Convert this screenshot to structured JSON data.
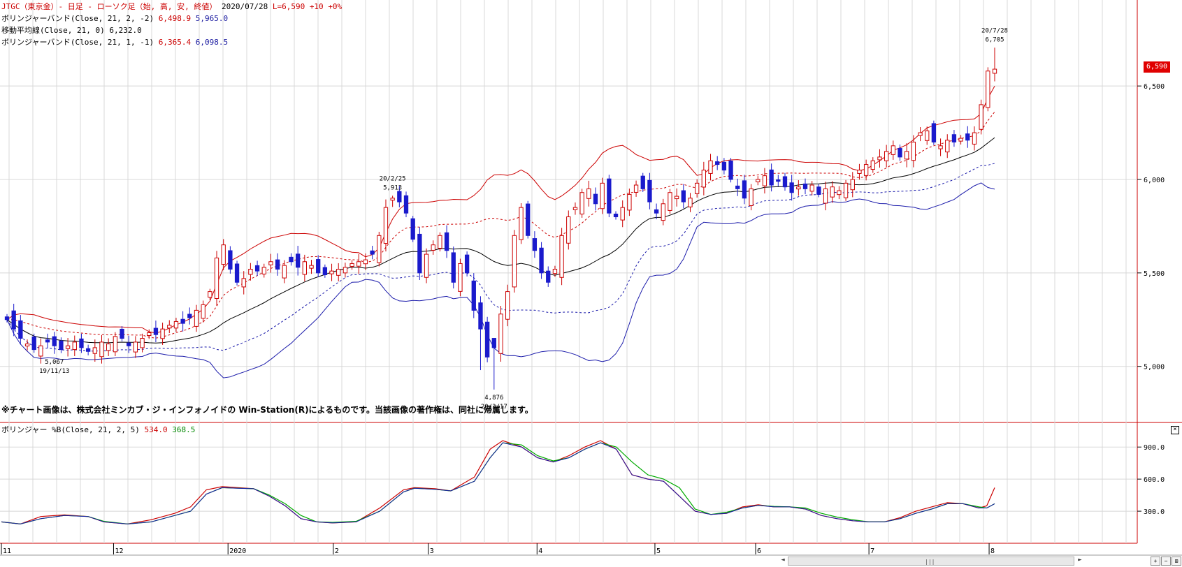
{
  "header": {
    "title": "JTGC（東京金）- 日足 - ローソク足（始, 高, 安, 終値）",
    "date": "2020/07/28",
    "last": "L=6,590",
    "change": "+10",
    "change_pct": "+0%",
    "ind1_label": "ボリンジャーバンド(Close, 21, 2, -2)",
    "ind1_upper": "6,498.9",
    "ind1_lower": "5,965.0",
    "ind2_label": "移動平均線(Close, 21, 0)",
    "ind2_value": "6,232.0",
    "ind3_label": "ボリンジャーバンド(Close, 21, 1, -1)",
    "ind3_upper": "6,365.4",
    "ind3_lower": "6,098.5"
  },
  "notice": "※チャート画像は、株式会社ミンカブ・ジ・インフォノイドの Win-Station(R)によるものです。当該画像の著作権は、同社に帰属します。",
  "price_tag": "6,590",
  "sub_header": {
    "label": "ボリンジャー %B(Close, 21, 2, 5)",
    "v1": "534.0",
    "v2": "368.5"
  },
  "colors": {
    "up": "#cc0000",
    "down": "#1a1acc",
    "sma": "#000000",
    "upper_band": "#cc0000",
    "lower_band": "#1a1aaa",
    "pb_line1": "#cc0000",
    "pb_line2": "#00aa00",
    "pb_line3": "#1a1aaa",
    "grid": "#d8d8d8"
  },
  "chart_data": [
    {
      "type": "candlestick",
      "title": "JTGC（東京金）- 日足 - ローソク足（始, 高, 安, 終値）",
      "y_ticks": [
        5000,
        5500,
        6000,
        6500
      ],
      "y_tick_labels": [
        "5,000",
        "5,500",
        "6,000",
        "6,500"
      ],
      "ylim": [
        4700,
        6960
      ],
      "x_tick_labels": [
        "11",
        "12",
        "2020",
        "2",
        "3",
        "4",
        "5",
        "6",
        "7",
        "8"
      ],
      "annotations": [
        {
          "text": "19/11/13",
          "value": "5,067",
          "date": "2019-11-13"
        },
        {
          "text": "20/2/25",
          "value": "5,913",
          "date": "2020-02-25"
        },
        {
          "text": "20/3/17",
          "value": "4,876",
          "date": "2020-03-17"
        },
        {
          "text": "20/7/28",
          "value": "6,705",
          "date": "2020-07-28"
        }
      ],
      "close_series": [
        5250,
        5200,
        5150,
        5120,
        5090,
        5110,
        5130,
        5110,
        5090,
        5110,
        5130,
        5100,
        5080,
        5100,
        5130,
        5120,
        5160,
        5150,
        5110,
        5130,
        5150,
        5180,
        5170,
        5200,
        5220,
        5240,
        5230,
        5260,
        5300,
        5330,
        5400,
        5580,
        5650,
        5520,
        5450,
        5470,
        5520,
        5510,
        5530,
        5560,
        5520,
        5540,
        5560,
        5530,
        5560,
        5540,
        5500,
        5490,
        5510,
        5520,
        5530,
        5550,
        5560,
        5570,
        5600,
        5700,
        5850,
        5900,
        5880,
        5820,
        5680,
        5500,
        5600,
        5650,
        5700,
        5620,
        5450,
        5550,
        5500,
        5300,
        5200,
        5050,
        5100,
        5280,
        5400,
        5700,
        5850,
        5700,
        5620,
        5500,
        5450,
        5520,
        5700,
        5800,
        5850,
        5930,
        5950,
        5870,
        5980,
        5820,
        5800,
        5850,
        5920,
        5970,
        5950,
        5880,
        5820,
        5870,
        5930,
        5910,
        5880,
        5900,
        5980,
        6050,
        6100,
        6080,
        6050,
        6000,
        5950,
        5900,
        5950,
        6000,
        6020,
        5970,
        5990,
        5960,
        5930,
        5960,
        5950,
        5970,
        5920,
        5950,
        5960,
        5940,
        5980,
        6000,
        6050,
        6080,
        6100,
        6120,
        6150,
        6180,
        6120,
        6150,
        6200,
        6250,
        6260,
        6200,
        6180,
        6210,
        6200,
        6220,
        6210,
        6250,
        6400,
        6580,
        6590
      ]
    },
    {
      "type": "line",
      "title": "ボリンジャー %B(Close, 21, 2, 5)",
      "y_ticks": [
        300,
        600,
        900
      ],
      "y_tick_labels": [
        "300.0",
        "600.0",
        "900.0"
      ],
      "ylim": [
        0,
        1130
      ],
      "series": [
        {
          "name": "534.0",
          "points": [
            [
              0,
              200
            ],
            [
              12,
              180
            ],
            [
              25,
              250
            ],
            [
              40,
              265
            ],
            [
              55,
              250
            ],
            [
              65,
              200
            ],
            [
              80,
              180
            ],
            [
              95,
              220
            ],
            [
              110,
              280
            ],
            [
              120,
              340
            ],
            [
              130,
              500
            ],
            [
              140,
              530
            ],
            [
              150,
              520
            ],
            [
              160,
              510
            ],
            [
              170,
              440
            ],
            [
              180,
              350
            ],
            [
              190,
              230
            ],
            [
              200,
              200
            ],
            [
              210,
              190
            ],
            [
              225,
              200
            ],
            [
              240,
              330
            ],
            [
              255,
              500
            ],
            [
              262,
              520
            ],
            [
              275,
              510
            ],
            [
              285,
              490
            ],
            [
              300,
              620
            ],
            [
              310,
              880
            ],
            [
              318,
              960
            ],
            [
              330,
              900
            ],
            [
              340,
              800
            ],
            [
              350,
              760
            ],
            [
              360,
              820
            ],
            [
              370,
              900
            ],
            [
              380,
              960
            ],
            [
              390,
              880
            ],
            [
              400,
              640
            ],
            [
              410,
              600
            ],
            [
              420,
              580
            ],
            [
              430,
              440
            ],
            [
              440,
              300
            ],
            [
              450,
              270
            ],
            [
              460,
              280
            ],
            [
              470,
              340
            ],
            [
              480,
              360
            ],
            [
              490,
              340
            ],
            [
              500,
              340
            ],
            [
              510,
              320
            ],
            [
              520,
              260
            ],
            [
              530,
              230
            ],
            [
              540,
              210
            ],
            [
              550,
              200
            ],
            [
              560,
              200
            ],
            [
              570,
              240
            ],
            [
              580,
              300
            ],
            [
              590,
              340
            ],
            [
              600,
              380
            ],
            [
              610,
              370
            ],
            [
              620,
              330
            ],
            [
              625,
              350
            ],
            [
              630,
              520
            ]
          ]
        },
        {
          "name": "368.5",
          "points": [
            [
              0,
              200
            ],
            [
              12,
              180
            ],
            [
              25,
              230
            ],
            [
              40,
              260
            ],
            [
              55,
              250
            ],
            [
              65,
              205
            ],
            [
              80,
              180
            ],
            [
              95,
              200
            ],
            [
              110,
              260
            ],
            [
              120,
              300
            ],
            [
              130,
              460
            ],
            [
              140,
              520
            ],
            [
              150,
              515
            ],
            [
              160,
              510
            ],
            [
              170,
              450
            ],
            [
              180,
              370
            ],
            [
              190,
              260
            ],
            [
              200,
              200
            ],
            [
              210,
              195
            ],
            [
              225,
              205
            ],
            [
              240,
              300
            ],
            [
              255,
              480
            ],
            [
              262,
              515
            ],
            [
              275,
              505
            ],
            [
              285,
              490
            ],
            [
              300,
              580
            ],
            [
              310,
              800
            ],
            [
              318,
              940
            ],
            [
              330,
              920
            ],
            [
              340,
              820
            ],
            [
              350,
              770
            ],
            [
              360,
              800
            ],
            [
              370,
              880
            ],
            [
              380,
              940
            ],
            [
              390,
              900
            ],
            [
              400,
              760
            ],
            [
              410,
              640
            ],
            [
              420,
              600
            ],
            [
              430,
              520
            ],
            [
              440,
              320
            ],
            [
              450,
              270
            ],
            [
              460,
              290
            ],
            [
              470,
              330
            ],
            [
              480,
              355
            ],
            [
              490,
              345
            ],
            [
              500,
              340
            ],
            [
              510,
              330
            ],
            [
              520,
              280
            ],
            [
              530,
              245
            ],
            [
              540,
              220
            ],
            [
              550,
              200
            ],
            [
              560,
              200
            ],
            [
              570,
              230
            ],
            [
              580,
              280
            ],
            [
              590,
              320
            ],
            [
              600,
              370
            ],
            [
              610,
              370
            ],
            [
              620,
              340
            ],
            [
              625,
              330
            ],
            [
              630,
              370
            ]
          ]
        }
      ]
    }
  ]
}
